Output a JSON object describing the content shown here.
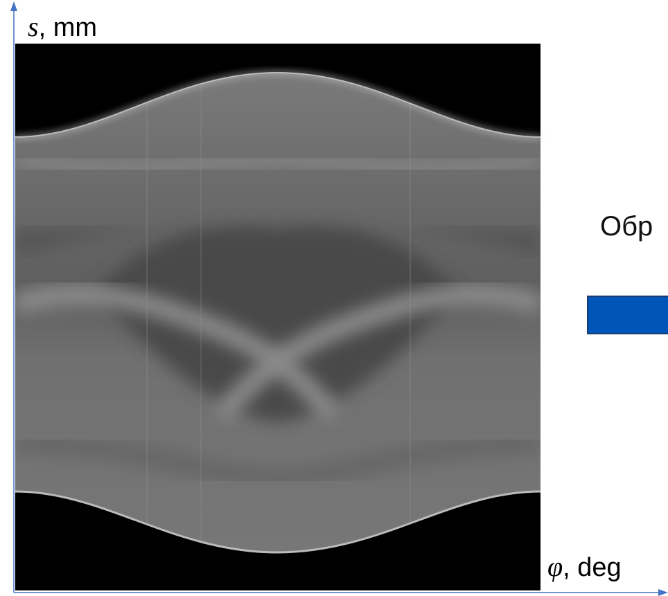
{
  "y_axis_label": {
    "symbol": "s",
    "unit": ", mm"
  },
  "x_axis_label": {
    "symbol": "φ",
    "unit": ", deg"
  },
  "side_text": "Обр"
}
